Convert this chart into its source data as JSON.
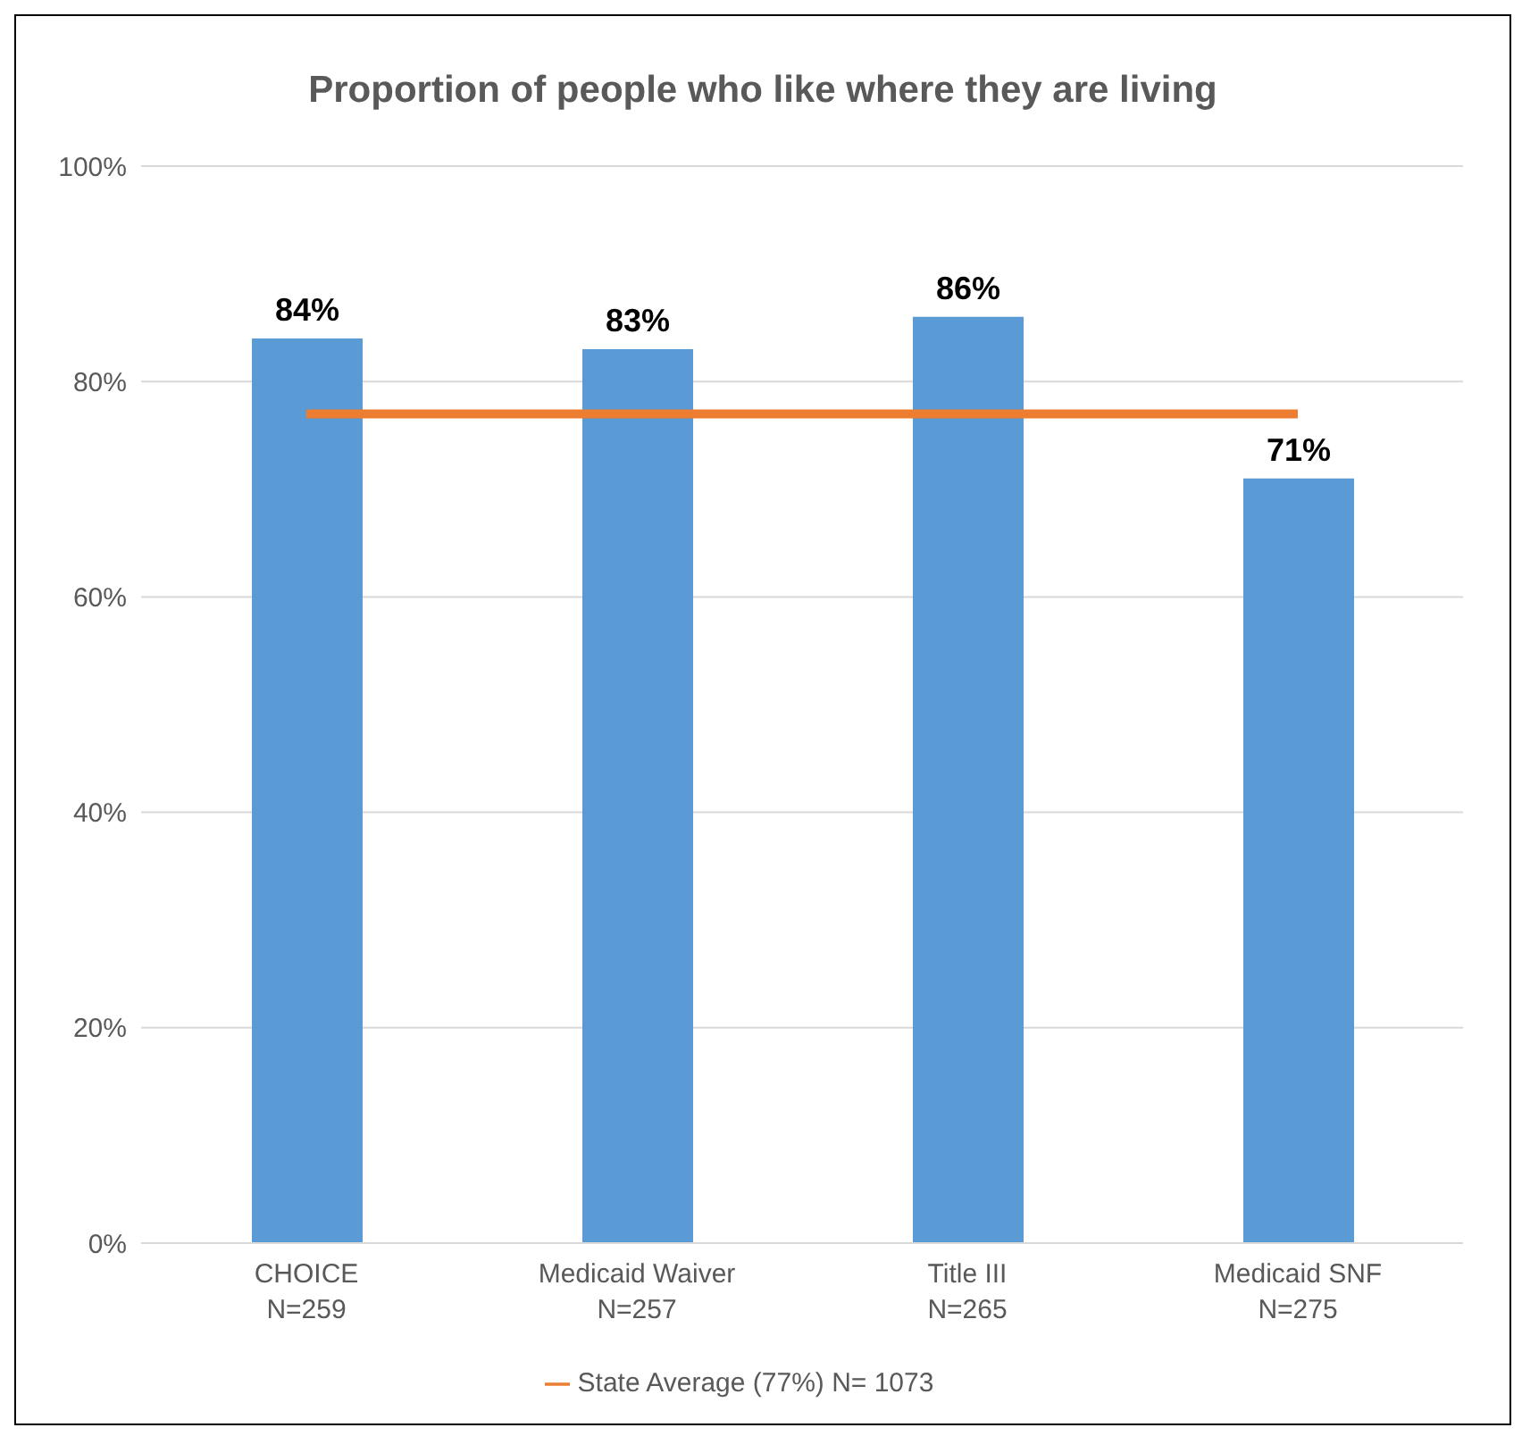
{
  "chart_data": {
    "type": "bar",
    "title": "Proportion of people who like where they are living",
    "categories": [
      "CHOICE\nN=259",
      "Medicaid Waiver\nN=257",
      "Title III\nN=265",
      "Medicaid SNF\nN=275"
    ],
    "series": [
      {
        "color": "#5b9bd5",
        "values": [
          84,
          83,
          86,
          71
        ],
        "value_labels": [
          "84%",
          "83%",
          "86%",
          "71%"
        ]
      },
      {
        "type": "line",
        "name": "State Average (77%) N= 1073",
        "color": "#ed7d31",
        "values": [
          77,
          77,
          77,
          77
        ],
        "marker": "none"
      }
    ],
    "ylim": [
      0,
      100
    ],
    "yticks": [
      {
        "value": 0,
        "label": "0%"
      },
      {
        "value": 20,
        "label": "20%"
      },
      {
        "value": 40,
        "label": "40%"
      },
      {
        "value": 60,
        "label": "60%"
      },
      {
        "value": 80,
        "label": "80%"
      },
      {
        "value": 100,
        "label": "100%"
      }
    ],
    "grid": "y",
    "legend": "bottom"
  }
}
